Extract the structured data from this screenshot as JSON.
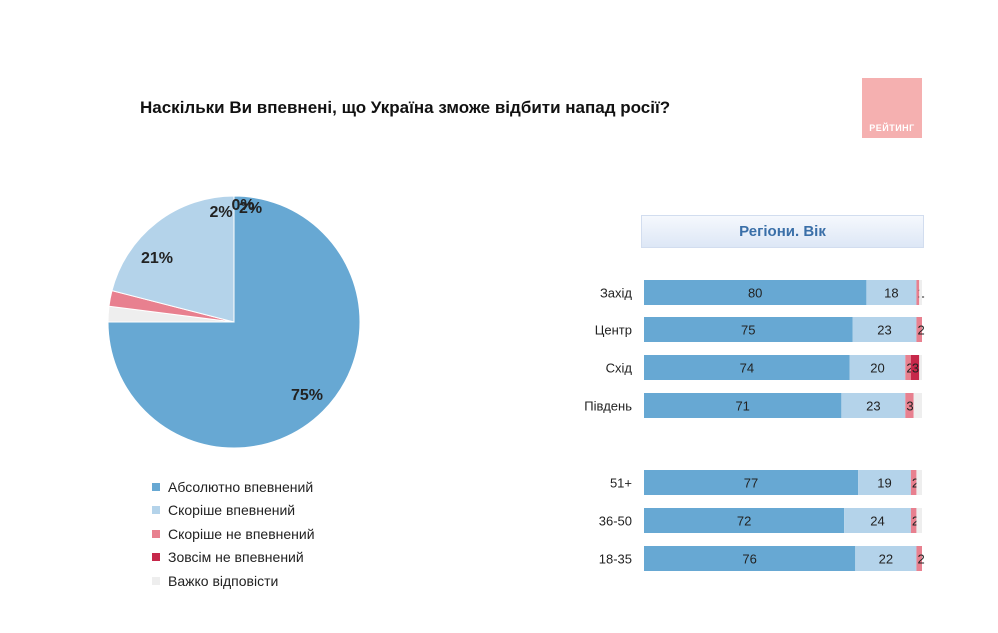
{
  "title": "Наскільки Ви впевнені, що Україна зможе відбити напад росії?",
  "logo": {
    "text": "РЕЙТИНГ"
  },
  "colors": {
    "absolute": "#67a8d3",
    "rather": "#b4d3ea",
    "rather_not": "#e8808f",
    "not_at_all": "#c6284a",
    "hard": "#eeeeee"
  },
  "legend": {
    "items": [
      {
        "label": "Абсолютно впевнений",
        "color": "#67a8d3",
        "icon": "square-icon"
      },
      {
        "label": "Скоріше впевнений",
        "color": "#b4d3ea",
        "icon": "square-icon"
      },
      {
        "label": "Скоріше не впевнений",
        "color": "#e8808f",
        "icon": "square-icon"
      },
      {
        "label": "Зовсім не впевнений",
        "color": "#c6284a",
        "icon": "square-icon"
      },
      {
        "label": "Важко відповісти",
        "color": "#eeeeee",
        "icon": "square-icon"
      }
    ]
  },
  "chart_data": [
    {
      "type": "pie",
      "title": "Наскільки Ви впевнені, що Україна зможе відбити напад росії?",
      "slices": [
        {
          "name": "Абсолютно впевнений",
          "value": 75,
          "label": "75%"
        },
        {
          "name": "Скоріше впевнений",
          "value": 21,
          "label": "21%"
        },
        {
          "name": "Скоріше не впевнений",
          "value": 2,
          "label": "2%"
        },
        {
          "name": "Зовсім не впевнений",
          "value": 0,
          "label": "0%"
        },
        {
          "name": "Важко відповісти",
          "value": 2,
          "label": "2%"
        }
      ]
    },
    {
      "type": "bar",
      "orientation": "horizontal",
      "stacked": true,
      "title": "Регіони. Вік",
      "categories": [
        "Захід",
        "Центр",
        "Схід",
        "Південь",
        "51+",
        "36-50",
        "18-35"
      ],
      "groups": [
        {
          "name": "Регіони",
          "categories": [
            "Захід",
            "Центр",
            "Схід",
            "Південь"
          ]
        },
        {
          "name": "Вік",
          "categories": [
            "51+",
            "36-50",
            "18-35"
          ]
        }
      ],
      "series": [
        {
          "name": "Абсолютно впевнений",
          "values": [
            80,
            75,
            74,
            71,
            77,
            72,
            76
          ],
          "labels": [
            "80",
            "75",
            "74",
            "71",
            "77",
            "72",
            "76"
          ]
        },
        {
          "name": "Скоріше впевнений",
          "values": [
            18,
            23,
            20,
            23,
            19,
            24,
            22
          ],
          "labels": [
            "18",
            "23",
            "20",
            "23",
            "19",
            "24",
            "22"
          ]
        },
        {
          "name": "Скоріше не впевнений",
          "values": [
            1,
            2,
            2,
            3,
            2,
            2,
            2
          ],
          "labels": [
            "1",
            "2",
            "2",
            "3",
            "2",
            "2",
            "2"
          ]
        },
        {
          "name": "Зовсім не впевнений",
          "values": [
            0,
            0,
            3,
            0,
            0,
            0,
            0
          ],
          "labels": [
            "",
            "",
            "3",
            "",
            "",
            "",
            ""
          ]
        },
        {
          "name": "Важко відповісти",
          "values": [
            1,
            0,
            1,
            3,
            2,
            2,
            0
          ],
          "labels": [
            "",
            "",
            "",
            "",
            "",
            "",
            ""
          ]
        }
      ]
    }
  ]
}
